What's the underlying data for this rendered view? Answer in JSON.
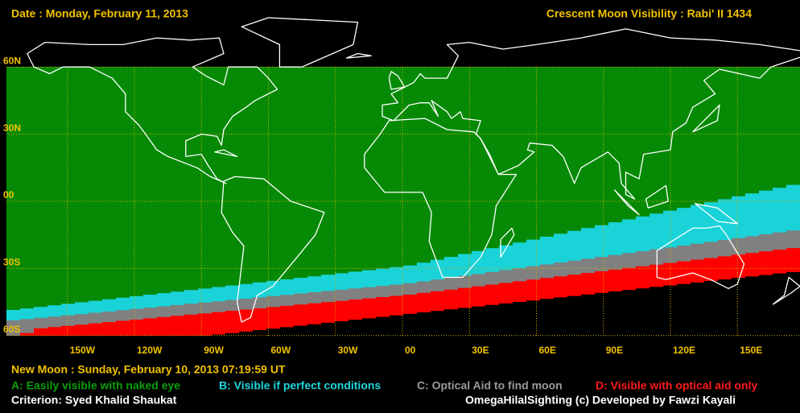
{
  "header": {
    "date": "Date : Monday, February 11, 2013",
    "title": "Crescent Moon Visibility : Rabi' II  1434"
  },
  "map": {
    "lat_labels": [
      "60N",
      "30N",
      "00",
      "30S",
      "60S"
    ],
    "lon_labels": [
      "150W",
      "120W",
      "90W",
      "60W",
      "30W",
      "00",
      "30E",
      "60E",
      "90E",
      "120E",
      "150E"
    ]
  },
  "footer": {
    "new_moon": "New Moon : Sunday, February 10, 2013  07:19:59  UT",
    "legend": [
      "A: Easily visible with naked eye",
      "B: Visible if perfect conditions",
      "C: Optical Aid to find moon",
      "D: Visible with optical aid only"
    ],
    "criterion": "Criterion: Syed Khalid Shaukat",
    "credit": "OmegaHilalSighting  (c)  Developed by Fawzi Kayali"
  }
}
